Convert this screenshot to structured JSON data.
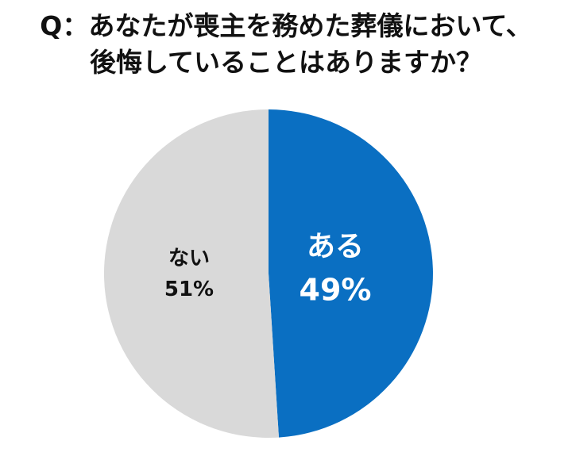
{
  "title_lines": [
    "Q：あなたが喪主を務めた葬儀において、",
    "後悔していることはありますか？"
  ],
  "colors": {
    "aru": "#0a6fc2",
    "nai": "#d9d9d9",
    "aru_text": "#ffffff",
    "nai_text": "#111111"
  },
  "chart_data": {
    "type": "pie",
    "title": "Q：あなたが喪主を務めた葬儀において、後悔していることはありますか？",
    "slices": [
      {
        "label": "ある",
        "value": 49,
        "value_label": "49%"
      },
      {
        "label": "ない",
        "value": 51,
        "value_label": "51%"
      }
    ],
    "start": "12 o'clock",
    "direction": "clockwise"
  }
}
